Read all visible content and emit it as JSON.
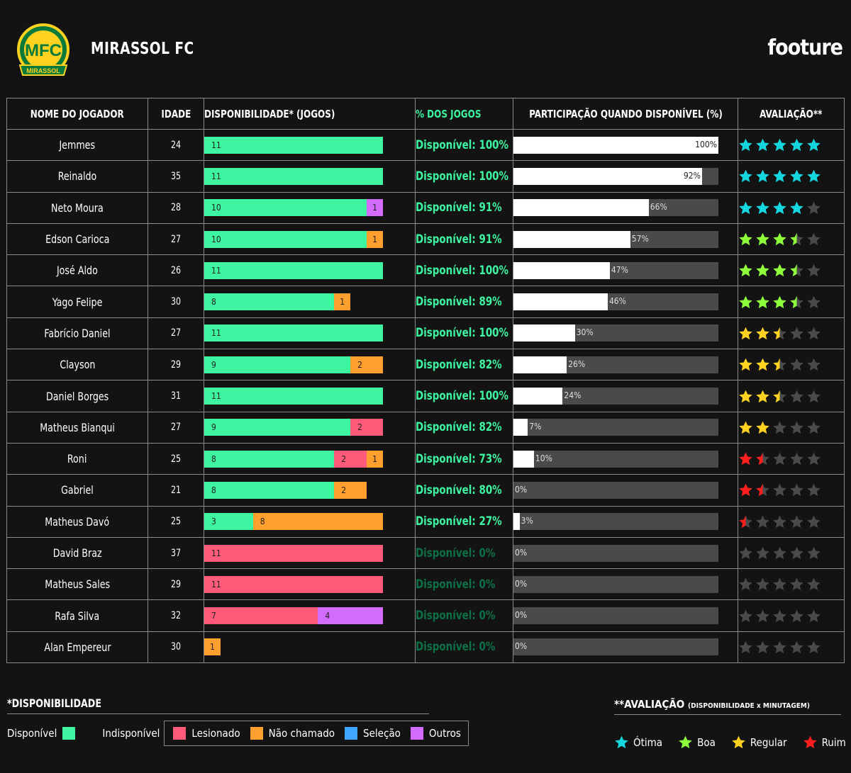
{
  "header": {
    "club_name": "MIRASSOL FC",
    "brand": "footure",
    "logo_text": "MFC",
    "logo_ribbon": "MIRASSOL"
  },
  "colors": {
    "available": "#3df5a0",
    "injured": "#ff5a7a",
    "not_called": "#ff9f2e",
    "national_team": "#3ea6ff",
    "others": "#d36bff",
    "star_otima": "#13d6df",
    "star_boa": "#8dff3a",
    "star_regular": "#ffd21f",
    "star_ruim": "#ff1d1d",
    "star_empty": "#4a4a4a"
  },
  "table": {
    "headers": [
      "NOME DO JOGADOR",
      "IDADE",
      "DISPONIBILIDADE* (JOGOS)",
      "% DOS JOGOS",
      "PARTICIPAÇÃO QUANDO DISPONÍVEL (%)",
      "AVALIAÇÃO**"
    ]
  },
  "chart_data": {
    "type": "table",
    "total_games": 11,
    "rows": [
      {
        "name": "Jemmes",
        "age": "24",
        "segments": [
          {
            "cat": "available",
            "v": 11
          }
        ],
        "pct_text": "Disponível: 100%",
        "participation": 100,
        "participation_label": "100%",
        "rating": 5,
        "rating_tier": "otima"
      },
      {
        "name": "Reinaldo",
        "age": "35",
        "segments": [
          {
            "cat": "available",
            "v": 11
          }
        ],
        "pct_text": "Disponível: 100%",
        "participation": 92,
        "participation_label": "92%",
        "rating": 5,
        "rating_tier": "otima"
      },
      {
        "name": "Neto Moura",
        "age": "28",
        "segments": [
          {
            "cat": "available",
            "v": 10
          },
          {
            "cat": "others",
            "v": 1
          }
        ],
        "pct_text": "Disponível: 91%",
        "participation": 66,
        "participation_label": "66%",
        "rating": 4,
        "rating_tier": "otima"
      },
      {
        "name": "Edson Carioca",
        "age": "27",
        "segments": [
          {
            "cat": "available",
            "v": 10
          },
          {
            "cat": "not_called",
            "v": 1
          }
        ],
        "pct_text": "Disponível: 91%",
        "participation": 57,
        "participation_label": "57%",
        "rating": 3.5,
        "rating_tier": "boa"
      },
      {
        "name": "José Aldo",
        "age": "26",
        "segments": [
          {
            "cat": "available",
            "v": 11
          }
        ],
        "pct_text": "Disponível: 100%",
        "participation": 47,
        "participation_label": "47%",
        "rating": 3.5,
        "rating_tier": "boa"
      },
      {
        "name": "Yago Felipe",
        "age": "30",
        "segments": [
          {
            "cat": "available",
            "v": 8
          },
          {
            "cat": "not_called",
            "v": 1
          }
        ],
        "pct_text": "Disponível: 89%",
        "participation": 46,
        "participation_label": "46%",
        "rating": 3.5,
        "rating_tier": "boa"
      },
      {
        "name": "Fabrício Daniel",
        "age": "27",
        "segments": [
          {
            "cat": "available",
            "v": 11
          }
        ],
        "pct_text": "Disponível: 100%",
        "participation": 30,
        "participation_label": "30%",
        "rating": 2.5,
        "rating_tier": "regular"
      },
      {
        "name": "Clayson",
        "age": "29",
        "segments": [
          {
            "cat": "available",
            "v": 9
          },
          {
            "cat": "not_called",
            "v": 2
          }
        ],
        "pct_text": "Disponível: 82%",
        "participation": 26,
        "participation_label": "26%",
        "rating": 2.5,
        "rating_tier": "regular"
      },
      {
        "name": "Daniel Borges",
        "age": "31",
        "segments": [
          {
            "cat": "available",
            "v": 11
          }
        ],
        "pct_text": "Disponível: 100%",
        "participation": 24,
        "participation_label": "24%",
        "rating": 2.5,
        "rating_tier": "regular"
      },
      {
        "name": "Matheus Bianqui",
        "age": "27",
        "segments": [
          {
            "cat": "available",
            "v": 9
          },
          {
            "cat": "injured",
            "v": 2
          }
        ],
        "pct_text": "Disponível: 82%",
        "participation": 7,
        "participation_label": "7%",
        "rating": 2,
        "rating_tier": "regular"
      },
      {
        "name": "Roni",
        "age": "25",
        "segments": [
          {
            "cat": "available",
            "v": 8
          },
          {
            "cat": "injured",
            "v": 2
          },
          {
            "cat": "not_called",
            "v": 1
          }
        ],
        "pct_text": "Disponível: 73%",
        "participation": 10,
        "participation_label": "10%",
        "rating": 1.5,
        "rating_tier": "ruim"
      },
      {
        "name": "Gabriel",
        "age": "21",
        "segments": [
          {
            "cat": "available",
            "v": 8
          },
          {
            "cat": "not_called",
            "v": 2
          }
        ],
        "pct_text": "Disponível: 80%",
        "participation": 0,
        "participation_label": "0%",
        "rating": 1.5,
        "rating_tier": "ruim"
      },
      {
        "name": "Matheus Davó",
        "age": "25",
        "segments": [
          {
            "cat": "available",
            "v": 3
          },
          {
            "cat": "not_called",
            "v": 8
          }
        ],
        "pct_text": "Disponível: 27%",
        "participation": 3,
        "participation_label": "3%",
        "rating": 0.5,
        "rating_tier": "ruim"
      },
      {
        "name": "David Braz",
        "age": "37",
        "segments": [
          {
            "cat": "injured",
            "v": 11
          }
        ],
        "pct_text": "Disponível: 0%",
        "participation": 0,
        "participation_label": "0%",
        "rating": 0,
        "rating_tier": "none"
      },
      {
        "name": "Matheus Sales",
        "age": "29",
        "segments": [
          {
            "cat": "injured",
            "v": 11
          }
        ],
        "pct_text": "Disponível: 0%",
        "participation": 0,
        "participation_label": "0%",
        "rating": 0,
        "rating_tier": "none"
      },
      {
        "name": "Rafa Silva",
        "age": "32",
        "segments": [
          {
            "cat": "injured",
            "v": 7
          },
          {
            "cat": "others",
            "v": 4
          }
        ],
        "pct_text": "Disponível: 0%",
        "participation": 0,
        "participation_label": "0%",
        "rating": 0,
        "rating_tier": "none"
      },
      {
        "name": "Alan Empereur",
        "age": "30",
        "segments": [
          {
            "cat": "not_called",
            "v": 1
          }
        ],
        "pct_text": "Disponível: 0%",
        "participation": 0,
        "participation_label": "0%",
        "rating": 0,
        "rating_tier": "none"
      }
    ]
  },
  "legend_availability": {
    "title": "*DISPONIBILIDADE",
    "available_label": "Disponível",
    "unavailable_label": "Indisponível",
    "items": [
      {
        "label": "Lesionado",
        "cat": "injured"
      },
      {
        "label": "Não chamado",
        "cat": "not_called"
      },
      {
        "label": "Seleção",
        "cat": "national_team"
      },
      {
        "label": "Outros",
        "cat": "others"
      }
    ]
  },
  "legend_rating": {
    "title": "**AVALIAÇÃO",
    "subtitle": "(DISPONIBILIDADE x MINUTAGEM)",
    "items": [
      {
        "label": "Ótima",
        "tier": "otima"
      },
      {
        "label": "Boa",
        "tier": "boa"
      },
      {
        "label": "Regular",
        "tier": "regular"
      },
      {
        "label": "Ruim",
        "tier": "ruim"
      }
    ]
  }
}
